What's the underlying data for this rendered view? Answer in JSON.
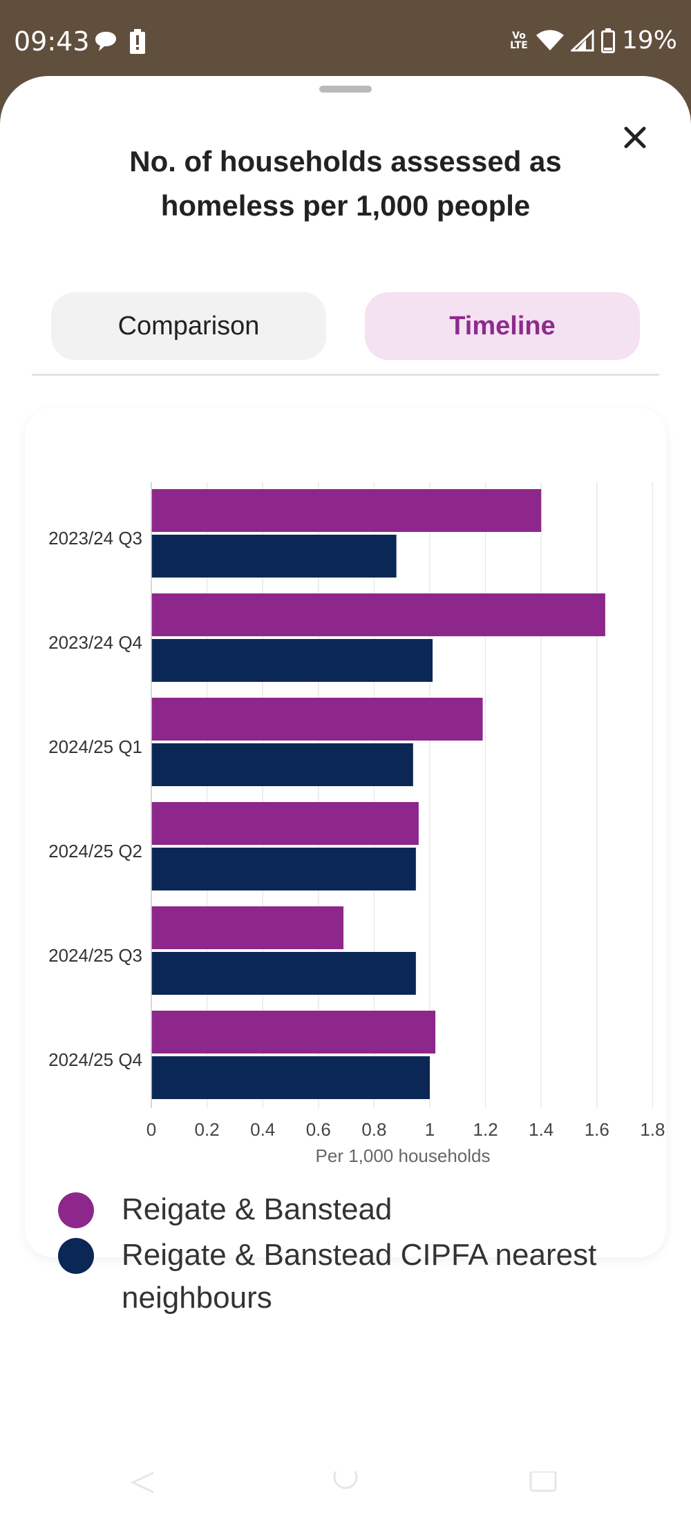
{
  "status_bar": {
    "time": "09:43",
    "battery": "19%",
    "network": "Vo LTE",
    "icons": [
      "chat-icon",
      "battery-alert-icon",
      "volte-icon",
      "wifi-icon",
      "signal-icon",
      "battery-icon"
    ]
  },
  "sheet": {
    "title": "No. of households assessed as homeless per 1,000 people",
    "close_icon": "close-icon",
    "tabs": [
      {
        "label": "Comparison",
        "active": false
      },
      {
        "label": "Timeline",
        "active": true
      }
    ]
  },
  "colors": {
    "series_1": "#8e278b",
    "series_2": "#0b2756",
    "active_tab_bg": "#f4e1f2",
    "active_tab_text": "#8e2b8c"
  },
  "chart_data": {
    "type": "bar",
    "orientation": "horizontal",
    "categories": [
      "2023/24 Q3",
      "2023/24 Q4",
      "2024/25 Q1",
      "2024/25 Q2",
      "2024/25 Q3",
      "2024/25 Q4"
    ],
    "series": [
      {
        "name": "Reigate & Banstead",
        "values": [
          1.4,
          1.63,
          1.19,
          0.96,
          0.69,
          1.02
        ]
      },
      {
        "name": "Reigate & Banstead CIPFA nearest neighbours",
        "values": [
          0.88,
          1.01,
          0.94,
          0.95,
          0.95,
          1.0
        ]
      }
    ],
    "xticks": [
      "0",
      "0.2",
      "0.4",
      "0.6",
      "0.8",
      "1",
      "1.2",
      "1.4",
      "1.6",
      "1.8"
    ],
    "xlim": [
      0,
      1.8
    ],
    "xlabel": "Per 1,000 households",
    "grid": "vertical",
    "legend": "bottom"
  }
}
